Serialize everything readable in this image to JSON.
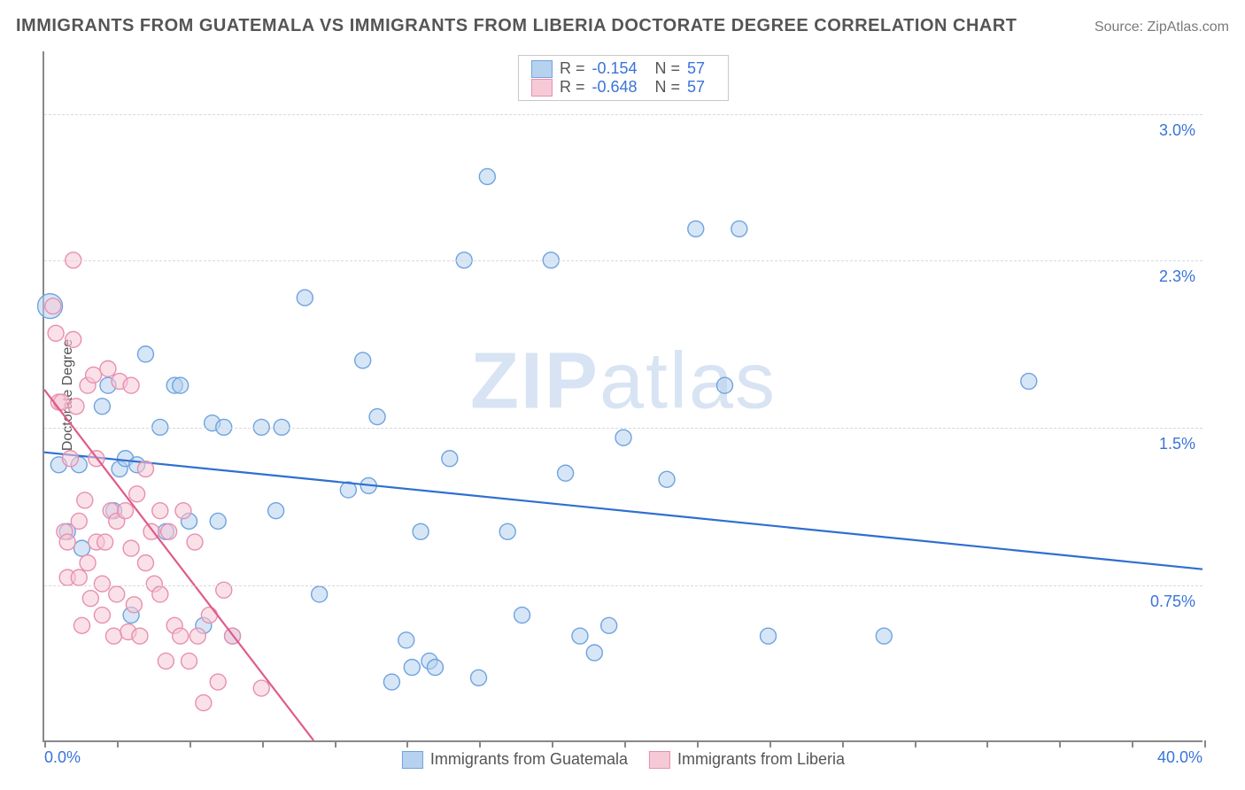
{
  "header": {
    "title": "IMMIGRANTS FROM GUATEMALA VS IMMIGRANTS FROM LIBERIA DOCTORATE DEGREE CORRELATION CHART",
    "source_prefix": "Source: ",
    "source_name": "ZipAtlas.com"
  },
  "chart": {
    "type": "scatter",
    "xlim": [
      0,
      40
    ],
    "ylim": [
      0,
      3.3
    ],
    "x_tick_step": 2.5,
    "x_label_min": "0.0%",
    "x_label_max": "40.0%",
    "y_ticks": [
      {
        "v": 0.75,
        "label": "0.75%"
      },
      {
        "v": 1.5,
        "label": "1.5%"
      },
      {
        "v": 2.3,
        "label": "2.3%"
      },
      {
        "v": 3.0,
        "label": "3.0%"
      }
    ],
    "y_axis_title": "Doctorate Degree",
    "grid_color": "#d9d9d9",
    "axis_color": "#888888",
    "background_color": "#ffffff",
    "marker_radius": 9,
    "marker_stroke_width": 1.4,
    "line_width": 2.2,
    "watermark": "ZIPatlas",
    "watermark_color": "#b9cfea"
  },
  "stats": {
    "rows": [
      {
        "swatch_fill": "#b7d2ef",
        "swatch_stroke": "#6ea3e0",
        "r_label": "R =",
        "r_val": "-0.154",
        "n_label": "N =",
        "n_val": "57"
      },
      {
        "swatch_fill": "#f6c9d6",
        "swatch_stroke": "#e88fb0",
        "r_label": "R =",
        "r_val": "-0.648",
        "n_label": "N =",
        "n_val": "57"
      }
    ]
  },
  "legend": {
    "items": [
      {
        "swatch_fill": "#b7d2ef",
        "swatch_stroke": "#6ea3e0",
        "label": "Immigrants from Guatemala"
      },
      {
        "swatch_fill": "#f6c9d6",
        "swatch_stroke": "#e88fb0",
        "label": "Immigrants from Liberia"
      }
    ]
  },
  "series": [
    {
      "name": "guatemala",
      "color_fill": "#b7d2ef",
      "color_stroke": "#6ea3e0",
      "fill_opacity": 0.55,
      "trend": {
        "x1": 0,
        "y1": 1.38,
        "x2": 40,
        "y2": 0.82,
        "color": "#2f6fd0"
      },
      "points": [
        [
          0.2,
          2.08,
          14
        ],
        [
          0.5,
          1.32
        ],
        [
          0.8,
          1.0
        ],
        [
          1.2,
          1.32
        ],
        [
          1.3,
          0.92
        ],
        [
          2.0,
          1.6
        ],
        [
          2.2,
          1.7
        ],
        [
          2.4,
          1.1
        ],
        [
          2.6,
          1.3
        ],
        [
          2.8,
          1.35
        ],
        [
          3.0,
          0.6
        ],
        [
          3.2,
          1.32
        ],
        [
          3.5,
          1.85
        ],
        [
          4.0,
          1.5
        ],
        [
          4.2,
          1.0
        ],
        [
          4.5,
          1.7
        ],
        [
          4.7,
          1.7
        ],
        [
          5.0,
          1.05
        ],
        [
          5.5,
          0.55
        ],
        [
          5.8,
          1.52
        ],
        [
          6.0,
          1.05
        ],
        [
          6.2,
          1.5
        ],
        [
          6.5,
          0.5
        ],
        [
          7.5,
          1.5
        ],
        [
          8.0,
          1.1
        ],
        [
          8.2,
          1.5
        ],
        [
          9.0,
          2.12
        ],
        [
          9.5,
          0.7
        ],
        [
          10.5,
          1.2
        ],
        [
          11.0,
          1.82
        ],
        [
          11.2,
          1.22
        ],
        [
          11.5,
          1.55
        ],
        [
          12.0,
          0.28
        ],
        [
          12.5,
          0.48
        ],
        [
          12.7,
          0.35
        ],
        [
          13.0,
          1.0
        ],
        [
          13.3,
          0.38
        ],
        [
          13.5,
          0.35
        ],
        [
          14.0,
          1.35
        ],
        [
          14.5,
          2.3
        ],
        [
          15.0,
          0.3
        ],
        [
          15.3,
          2.7
        ],
        [
          16.0,
          1.0
        ],
        [
          16.5,
          0.6
        ],
        [
          17.5,
          2.3
        ],
        [
          18.0,
          1.28
        ],
        [
          18.5,
          0.5
        ],
        [
          19.0,
          0.42
        ],
        [
          19.5,
          0.55
        ],
        [
          20.0,
          1.45
        ],
        [
          21.5,
          1.25
        ],
        [
          22.5,
          2.45
        ],
        [
          24.0,
          2.45
        ],
        [
          23.5,
          1.7
        ],
        [
          25.0,
          0.5
        ],
        [
          29.0,
          0.5
        ],
        [
          34.0,
          1.72
        ]
      ]
    },
    {
      "name": "liberia",
      "color_fill": "#f6c9d6",
      "color_stroke": "#e88fb0",
      "fill_opacity": 0.55,
      "trend": {
        "x1": 0,
        "y1": 1.68,
        "x2": 9.3,
        "y2": 0,
        "color": "#e05a8a"
      },
      "points": [
        [
          0.3,
          2.08
        ],
        [
          0.4,
          1.95
        ],
        [
          0.5,
          1.62
        ],
        [
          0.6,
          1.62
        ],
        [
          0.7,
          1.0
        ],
        [
          0.8,
          0.78
        ],
        [
          0.8,
          0.95
        ],
        [
          0.9,
          1.35
        ],
        [
          1.0,
          2.3
        ],
        [
          1.0,
          1.92
        ],
        [
          1.1,
          1.6
        ],
        [
          1.2,
          1.05
        ],
        [
          1.2,
          0.78
        ],
        [
          1.3,
          0.55
        ],
        [
          1.4,
          1.15
        ],
        [
          1.5,
          0.85
        ],
        [
          1.5,
          1.7
        ],
        [
          1.6,
          0.68
        ],
        [
          1.7,
          1.75
        ],
        [
          1.8,
          0.95
        ],
        [
          1.8,
          1.35
        ],
        [
          2.0,
          0.6
        ],
        [
          2.0,
          0.75
        ],
        [
          2.1,
          0.95
        ],
        [
          2.2,
          1.78
        ],
        [
          2.3,
          1.1
        ],
        [
          2.4,
          0.5
        ],
        [
          2.5,
          1.05
        ],
        [
          2.5,
          0.7
        ],
        [
          2.6,
          1.72
        ],
        [
          2.8,
          1.1
        ],
        [
          2.9,
          0.52
        ],
        [
          3.0,
          1.7
        ],
        [
          3.0,
          0.92
        ],
        [
          3.1,
          0.65
        ],
        [
          3.2,
          1.18
        ],
        [
          3.3,
          0.5
        ],
        [
          3.5,
          0.85
        ],
        [
          3.5,
          1.3
        ],
        [
          3.7,
          1.0
        ],
        [
          3.8,
          0.75
        ],
        [
          4.0,
          1.1
        ],
        [
          4.0,
          0.7
        ],
        [
          4.2,
          0.38
        ],
        [
          4.3,
          1.0
        ],
        [
          4.5,
          0.55
        ],
        [
          4.7,
          0.5
        ],
        [
          4.8,
          1.1
        ],
        [
          5.0,
          0.38
        ],
        [
          5.2,
          0.95
        ],
        [
          5.3,
          0.5
        ],
        [
          5.5,
          0.18
        ],
        [
          5.7,
          0.6
        ],
        [
          6.0,
          0.28
        ],
        [
          6.2,
          0.72
        ],
        [
          6.5,
          0.5
        ],
        [
          7.5,
          0.25
        ]
      ]
    }
  ]
}
